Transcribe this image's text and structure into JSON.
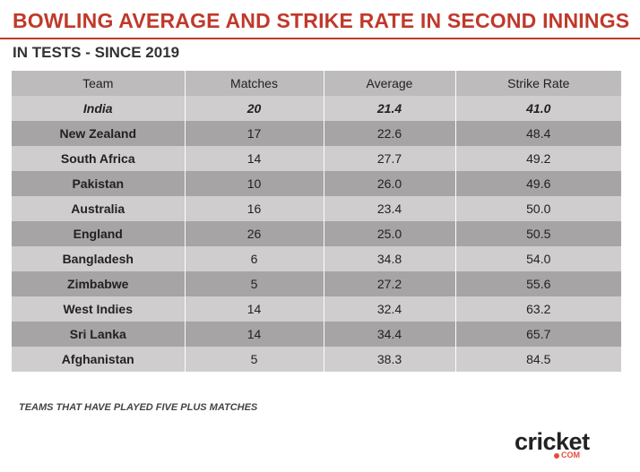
{
  "header": {
    "title": "BOWLING AVERAGE AND STRIKE RATE IN SECOND INNINGS",
    "subtitle": "IN TESTS - SINCE 2019"
  },
  "table": {
    "columns": [
      "Team",
      "Matches",
      "Average",
      "Strike Rate"
    ],
    "rows": [
      {
        "team": "India",
        "matches": "20",
        "average": "21.4",
        "strike_rate": "41.0",
        "highlight": true
      },
      {
        "team": "New Zealand",
        "matches": "17",
        "average": "22.6",
        "strike_rate": "48.4"
      },
      {
        "team": "South Africa",
        "matches": "14",
        "average": "27.7",
        "strike_rate": "49.2"
      },
      {
        "team": "Pakistan",
        "matches": "10",
        "average": "26.0",
        "strike_rate": "49.6"
      },
      {
        "team": "Australia",
        "matches": "16",
        "average": "23.4",
        "strike_rate": "50.0"
      },
      {
        "team": "England",
        "matches": "26",
        "average": "25.0",
        "strike_rate": "50.5"
      },
      {
        "team": "Bangladesh",
        "matches": "6",
        "average": "34.8",
        "strike_rate": "54.0"
      },
      {
        "team": "Zimbabwe",
        "matches": "5",
        "average": "27.2",
        "strike_rate": "55.6"
      },
      {
        "team": "West Indies",
        "matches": "14",
        "average": "32.4",
        "strike_rate": "63.2"
      },
      {
        "team": "Sri Lanka",
        "matches": "14",
        "average": "34.4",
        "strike_rate": "65.7"
      },
      {
        "team": "Afghanistan",
        "matches": "5",
        "average": "38.3",
        "strike_rate": "84.5"
      }
    ]
  },
  "footnote": "TEAMS THAT HAVE PLAYED FIVE PLUS MATCHES",
  "logo": {
    "wordmark": "cricket",
    "sub": "COM"
  },
  "colors": {
    "title_red": "#c0392b",
    "row_light": "#cfcdcd",
    "row_dark": "#a6a4a4",
    "header_bg": "#bdbbbb",
    "logo_accent": "#e74c3c"
  }
}
